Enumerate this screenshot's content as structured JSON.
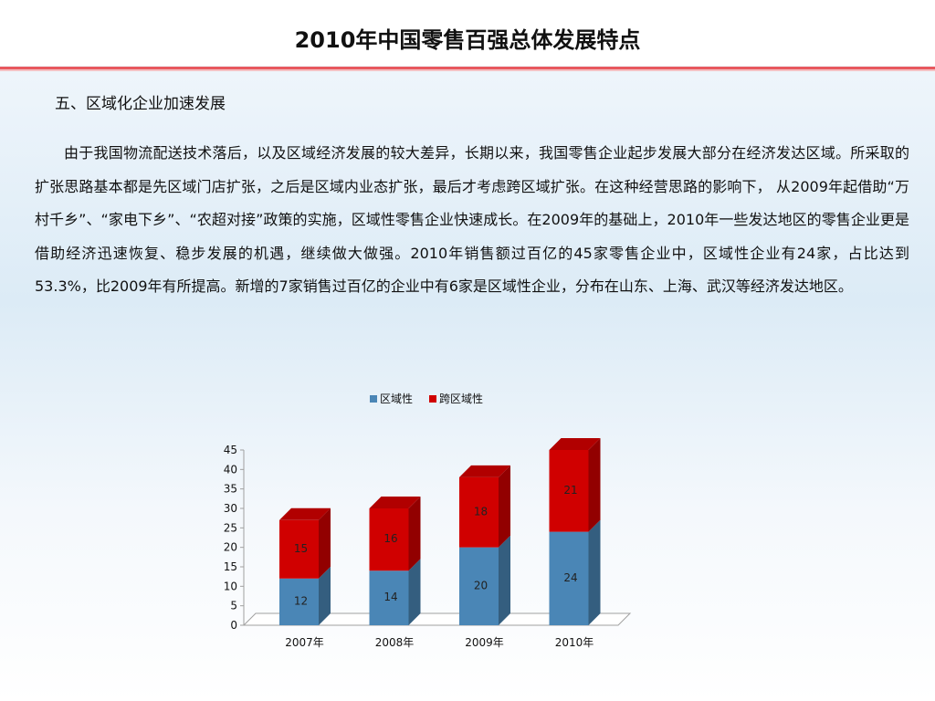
{
  "slide": {
    "title": "2010年中国零售百强总体发展特点",
    "section_heading": "五、区域化企业加速发展",
    "paragraph": "由于我国物流配送技术落后，以及区域经济发展的较大差异，长期以来，我国零售企业起步发展大部分在经济发达区域。所采取的扩张思路基本都是先区域门店扩张，之后是区域内业态扩张，最后才考虑跨区域扩张。在这种经营思路的影响下， 从2009年起借助“万村千乡”、“家电下乡”、“农超对接”政策的实施，区域性零售企业快速成长。在2009年的基础上，2010年一些发达地区的零售企业更是借助经济迅速恢复、稳步发展的机遇，继续做大做强。2010年销售额过百亿的45家零售企业中，区域性企业有24家，占比达到53.3%，比2009年有所提高。新增的7家销售过百亿的企业中有6家是区域性企业，分布在山东、上海、武汉等经济发达地区。"
  },
  "colors": {
    "accent_rule": "#e8585e",
    "regional": "#4a86b6",
    "cross_regional": "#d00000"
  },
  "chart_data": {
    "type": "bar",
    "stacked": true,
    "three_d": true,
    "categories": [
      "2007年",
      "2008年",
      "2009年",
      "2010年"
    ],
    "series": [
      {
        "name": "区域性",
        "values": [
          12,
          14,
          20,
          24
        ],
        "color": "#4a86b6"
      },
      {
        "name": "跨区域性",
        "values": [
          15,
          16,
          18,
          21
        ],
        "color": "#d00000"
      }
    ],
    "title": "",
    "xlabel": "",
    "ylabel": "",
    "ylim": [
      0,
      45
    ],
    "yticks": [
      0,
      5,
      10,
      15,
      20,
      25,
      30,
      35,
      40,
      45
    ],
    "grid": false,
    "legend": "top"
  }
}
